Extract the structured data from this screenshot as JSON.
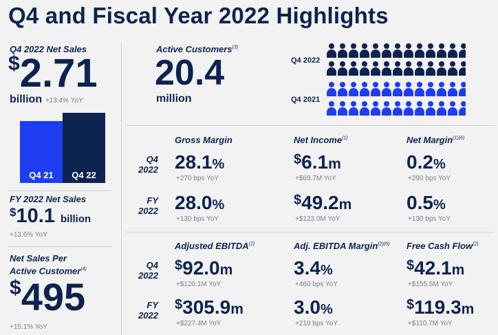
{
  "title": "Q4 and Fiscal Year 2022 Highlights",
  "colors": {
    "navy": "#0d2350",
    "blue": "#1e3df0",
    "bg": "#f2f2f2",
    "gray": "#7a7f8c"
  },
  "q4_net_sales": {
    "label": "Q4 2022 Net Sales",
    "currency": "$",
    "value": "2.71",
    "unit": "billion",
    "yoy": "+13.4% YoY",
    "bars": [
      {
        "label": "Q4 21",
        "value": 2.39,
        "color": "#1e3df0"
      },
      {
        "label": "Q4 22",
        "value": 2.71,
        "color": "#0d2350"
      }
    ]
  },
  "fy_net_sales": {
    "label": "FY 2022 Net Sales",
    "currency": "$",
    "value": "10.1",
    "unit": "billion",
    "yoy": "+13.6% YoY"
  },
  "net_sales_per_customer": {
    "label_line1": "Net Sales Per",
    "label_line2": "Active Customer",
    "footnote": "(4)",
    "currency": "$",
    "value": "495",
    "yoy": "+15.1% YoY"
  },
  "active_customers": {
    "label": "Active Customers",
    "footnote": "(3)",
    "value": "20.4",
    "unit": "million",
    "rows": [
      {
        "label": "Q4 2022",
        "icon": "person-icon",
        "color": "#0d2350",
        "count": 12
      },
      {
        "label": "Q4 2021",
        "icon": "person-icon",
        "color": "#1e3df0",
        "count": 12
      }
    ]
  },
  "row_labels": {
    "q4_line1": "Q4",
    "q4_line2": "2022",
    "fy_line1": "FY",
    "fy_line2": "2022"
  },
  "section1": {
    "headers": [
      {
        "text": "Gross Margin",
        "footnote": ""
      },
      {
        "text": "Net Income",
        "footnote": "(1)"
      },
      {
        "text": "Net Margin",
        "footnote": "(1)(6)"
      }
    ],
    "q4": [
      {
        "prefix": "",
        "value": "28.1",
        "suffix": "%",
        "yoy": "+270 bps YoY"
      },
      {
        "prefix": "$",
        "value": "6.1",
        "suffix": "m",
        "yoy": "+$69.7M YoY"
      },
      {
        "prefix": "",
        "value": "0.2",
        "suffix": "%",
        "yoy": "+290 bps YoY"
      }
    ],
    "fy": [
      {
        "prefix": "",
        "value": "28.0",
        "suffix": "%",
        "yoy": "+130 bps YoY"
      },
      {
        "prefix": "$",
        "value": "49.2",
        "suffix": "m",
        "yoy": "+$123.0M YoY"
      },
      {
        "prefix": "",
        "value": "0.5",
        "suffix": "%",
        "yoy": "+130 bps YoY"
      }
    ]
  },
  "section2": {
    "headers": [
      {
        "text": "Adjusted EBITDA",
        "footnote": "(2)"
      },
      {
        "text": "Adj. EBITDA Margin",
        "footnote": "(2)(6)"
      },
      {
        "text": "Free Cash Flow",
        "footnote": "(2)"
      }
    ],
    "q4": [
      {
        "prefix": "$",
        "value": "92.0",
        "suffix": "m",
        "yoy": "+$120.1M YoY"
      },
      {
        "prefix": "",
        "value": "3.4",
        "suffix": "%",
        "yoy": "+460 bps YoY"
      },
      {
        "prefix": "$",
        "value": "42.1",
        "suffix": "m",
        "yoy": "+$155.5M YoY"
      }
    ],
    "fy": [
      {
        "prefix": "$",
        "value": "305.9",
        "suffix": "m",
        "yoy": "+$227.4M YoY"
      },
      {
        "prefix": "",
        "value": "3.0",
        "suffix": "%",
        "yoy": "+210 bps YoY"
      },
      {
        "prefix": "$",
        "value": "119.3",
        "suffix": "m",
        "yoy": "+$110.7M YoY"
      }
    ]
  }
}
